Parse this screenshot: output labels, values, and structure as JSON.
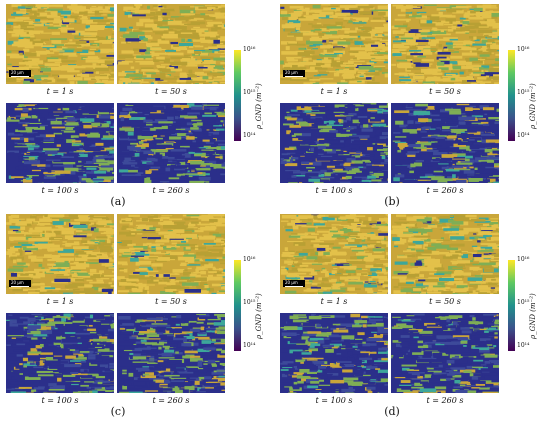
{
  "figure": {
    "scale_bar": "20 µm",
    "colorbar": {
      "unit": "ρ_GND (m⁻²)",
      "ticks": [
        "10¹⁶",
        "10¹⁵",
        "10¹⁴"
      ],
      "colors": [
        "#fde725",
        "#5ec962",
        "#21918c",
        "#3b528b",
        "#440154"
      ]
    },
    "times": [
      "t = 1 s",
      "t = 50 s",
      "t = 100 s",
      "t = 260 s"
    ],
    "panels": [
      {
        "label": "(a)"
      },
      {
        "label": "(b)"
      },
      {
        "label": "(c)"
      },
      {
        "label": "(d)"
      }
    ]
  }
}
